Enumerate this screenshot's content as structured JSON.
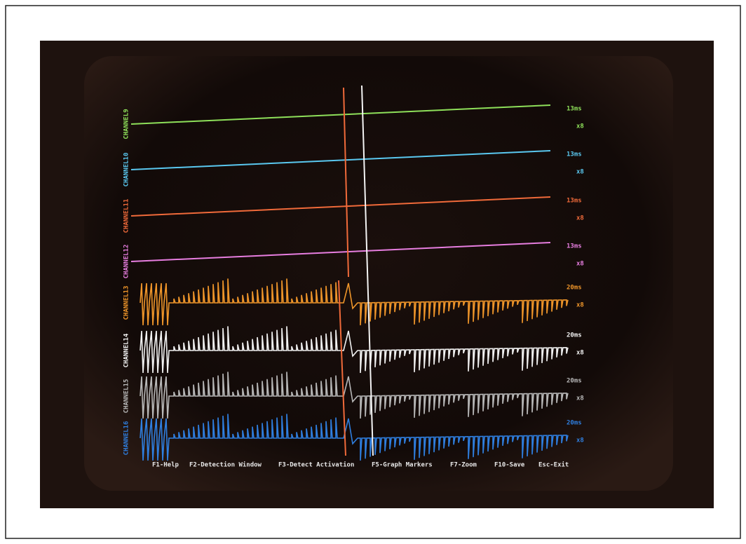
{
  "channels": [
    {
      "label": "CHANNEL9",
      "scale": "13ms",
      "gain": "x8"
    },
    {
      "label": "CHANNEL10",
      "scale": "13ms",
      "gain": "x8"
    },
    {
      "label": "CHANNEL11",
      "scale": "13ms",
      "gain": "x8"
    },
    {
      "label": "CHANNEL12",
      "scale": "13ms",
      "gain": "x8"
    },
    {
      "label": "CHANNEL13",
      "scale": "20ms",
      "gain": "x8"
    },
    {
      "label": "CHANNEL14",
      "scale": "20ms",
      "gain": "x8"
    },
    {
      "label": "CHANNEL15",
      "scale": "20ms",
      "gain": "x8"
    },
    {
      "label": "CHANNEL16",
      "scale": "20ms",
      "gain": "x8"
    }
  ],
  "menu": [
    "F1-Help",
    "F2-Detection Window",
    "F3-Detect Activation",
    "F5-Graph Markers",
    "F7-Zoom",
    "F10-Save",
    "Esc-Exit"
  ]
}
